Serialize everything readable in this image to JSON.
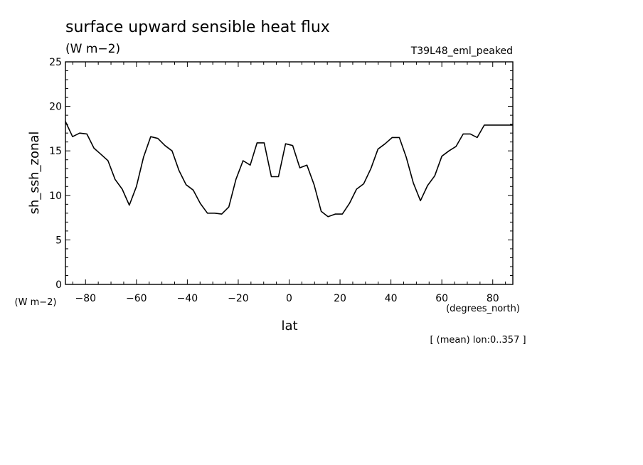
{
  "chart_data": {
    "type": "line",
    "title": "surface upward sensible heat flux",
    "units": "(W m−2)",
    "experiment": "T39L48_eml_peaked",
    "ylabel": "sh_ssh_zonal",
    "ylabel_units": "(W m−2)",
    "xlabel": "lat",
    "xlabel_units": "(degrees_north)",
    "footnote": "[ (mean) lon:0..357 ]",
    "xlim": [
      -87.9,
      87.9
    ],
    "ylim": [
      0,
      25
    ],
    "xticks": [
      "−80",
      "−60",
      "−40",
      "−20",
      "0",
      "20",
      "40",
      "60",
      "80"
    ],
    "xtick_values": [
      -80,
      -60,
      -40,
      -20,
      0,
      20,
      40,
      60,
      80
    ],
    "yticks": [
      "0",
      "5",
      "10",
      "15",
      "20",
      "25"
    ],
    "ytick_values": [
      0,
      5,
      10,
      15,
      20,
      25
    ],
    "grid": false,
    "line_color": "#000000",
    "series": [
      {
        "x": [
          -87.9,
          -85.1,
          -82.3,
          -79.5,
          -76.7,
          -73.9,
          -71.2,
          -68.4,
          -65.6,
          -62.8,
          -60.0,
          -57.2,
          -54.4,
          -51.6,
          -48.8,
          -46.0,
          -43.3,
          -40.5,
          -37.7,
          -34.9,
          -32.1,
          -29.3,
          -26.5,
          -23.7,
          -20.9,
          -18.1,
          -15.3,
          -12.6,
          -9.8,
          -7.0,
          -4.2,
          -1.4,
          1.4,
          4.2,
          7.0,
          9.8,
          12.6,
          15.3,
          18.1,
          20.9,
          23.7,
          26.5,
          29.3,
          32.1,
          34.9,
          37.7,
          40.5,
          43.3,
          46.0,
          48.8,
          51.6,
          54.4,
          57.2,
          60.0,
          62.8,
          65.6,
          68.4,
          71.2,
          73.9,
          76.7,
          79.5,
          82.3,
          85.1,
          87.9
        ],
        "y": [
          18.3,
          16.6,
          17.0,
          16.9,
          15.3,
          14.6,
          13.9,
          11.8,
          10.7,
          8.9,
          11.0,
          14.3,
          16.6,
          16.4,
          15.6,
          15.0,
          12.8,
          11.2,
          10.6,
          9.1,
          8.0,
          8.0,
          7.9,
          8.7,
          11.8,
          13.9,
          13.4,
          15.9,
          15.9,
          12.1,
          12.1,
          15.8,
          15.6,
          13.1,
          13.4,
          11.2,
          8.2,
          7.6,
          7.9,
          7.9,
          9.1,
          10.7,
          11.3,
          13.0,
          15.2,
          15.8,
          16.5,
          16.5,
          14.3,
          11.4,
          9.4,
          11.1,
          12.2,
          14.4,
          15.0,
          15.5,
          16.9,
          16.9,
          16.5,
          17.9,
          17.9,
          17.9,
          17.9,
          17.9
        ]
      }
    ]
  }
}
